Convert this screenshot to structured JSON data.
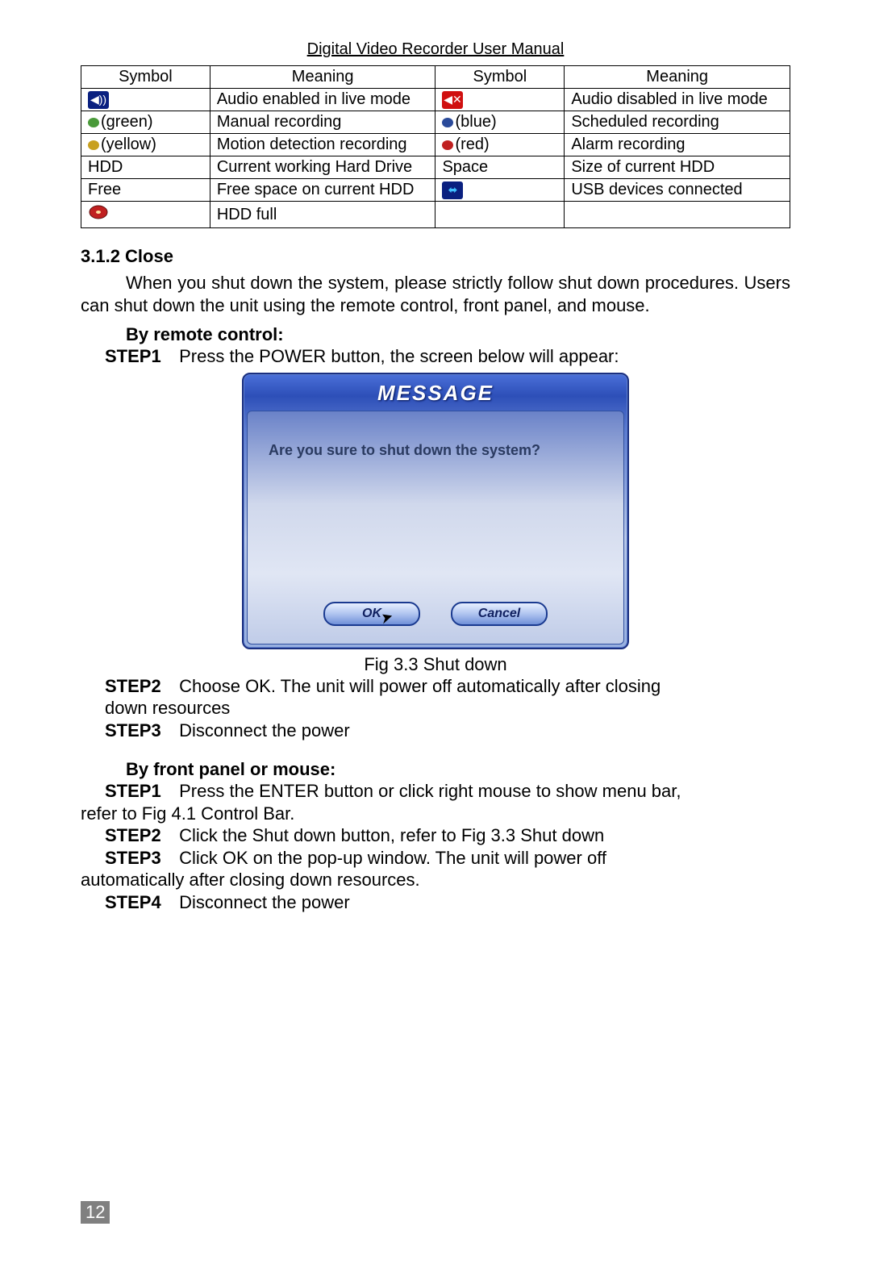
{
  "header": "Digital Video Recorder User Manual",
  "table": {
    "headers": [
      "Symbol",
      "Meaning",
      "Symbol",
      "Meaning"
    ],
    "rows": [
      {
        "c1": {
          "type": "iconbox",
          "bg": "#0a2080",
          "fg": "#ffffff",
          "glyph": "◀))"
        },
        "c2": "Audio enabled in live mode",
        "c3": {
          "type": "iconbox",
          "bg": "#d01010",
          "fg": "#ffffff",
          "glyph": "◀✕"
        },
        "c4": "Audio disabled in live mode"
      },
      {
        "c1": {
          "type": "dot",
          "color": "#4a9a3a",
          "label": "(green)"
        },
        "c2": "Manual recording",
        "c3": {
          "type": "dot",
          "color": "#2a4a9a",
          "label": "(blue)"
        },
        "c4": "Scheduled recording"
      },
      {
        "c1": {
          "type": "dot",
          "color": "#c8a020",
          "label": "(yellow)"
        },
        "c2": "Motion detection recording",
        "c3": {
          "type": "dot",
          "color": "#c02020",
          "label": "(red)"
        },
        "c4": "Alarm recording"
      },
      {
        "c1": {
          "type": "text",
          "label": "HDD"
        },
        "c2": "Current working Hard Drive",
        "c3": {
          "type": "text",
          "label": "Space"
        },
        "c4": "Size of current HDD"
      },
      {
        "c1": {
          "type": "text",
          "label": "Free"
        },
        "c2": "Free space on current HDD",
        "c3": {
          "type": "iconbox",
          "bg": "#0a2080",
          "fg": "#40c0ff",
          "glyph": "⬌"
        },
        "c4": "USB devices connected"
      },
      {
        "c1": {
          "type": "iconbox",
          "bg": "",
          "fg": "",
          "glyph": "disc"
        },
        "c2": "HDD full",
        "c3": {
          "type": "empty"
        },
        "c4": ""
      }
    ]
  },
  "section_close": {
    "heading": "3.1.2 Close",
    "para": "When you shut down the system, please strictly follow shut down procedures. Users can shut down the unit using the remote control, front panel, and mouse."
  },
  "remote": {
    "heading": "By remote control:",
    "step1_label": "STEP1",
    "step1_text": "Press the POWER button, the screen below will appear:",
    "step2_label": "STEP2",
    "step2_text": "Choose OK. The unit will power off automatically after closing",
    "step2_cont": "down resources",
    "step3_label": "STEP3",
    "step3_text": "Disconnect the power"
  },
  "dialog": {
    "title": "MESSAGE",
    "msg": "Are you sure to shut down the system?",
    "ok": "OK",
    "cancel": "Cancel",
    "caption": "Fig 3.3 Shut down"
  },
  "front": {
    "heading": "By front panel or mouse:",
    "step1_label": "STEP1",
    "step1_text": "Press the ENTER button or click right mouse to show menu bar,",
    "step1_cont": "refer to Fig 4.1 Control Bar.",
    "step2_label": "STEP2",
    "step2_text": "Click the Shut down button, refer to Fig 3.3 Shut down",
    "step3_label": "STEP3",
    "step3_text": "Click OK on the pop-up window. The unit will power off",
    "step3_cont": "automatically after closing down resources.",
    "step4_label": "STEP4",
    "step4_text": "Disconnect the power"
  },
  "page_number": "12"
}
